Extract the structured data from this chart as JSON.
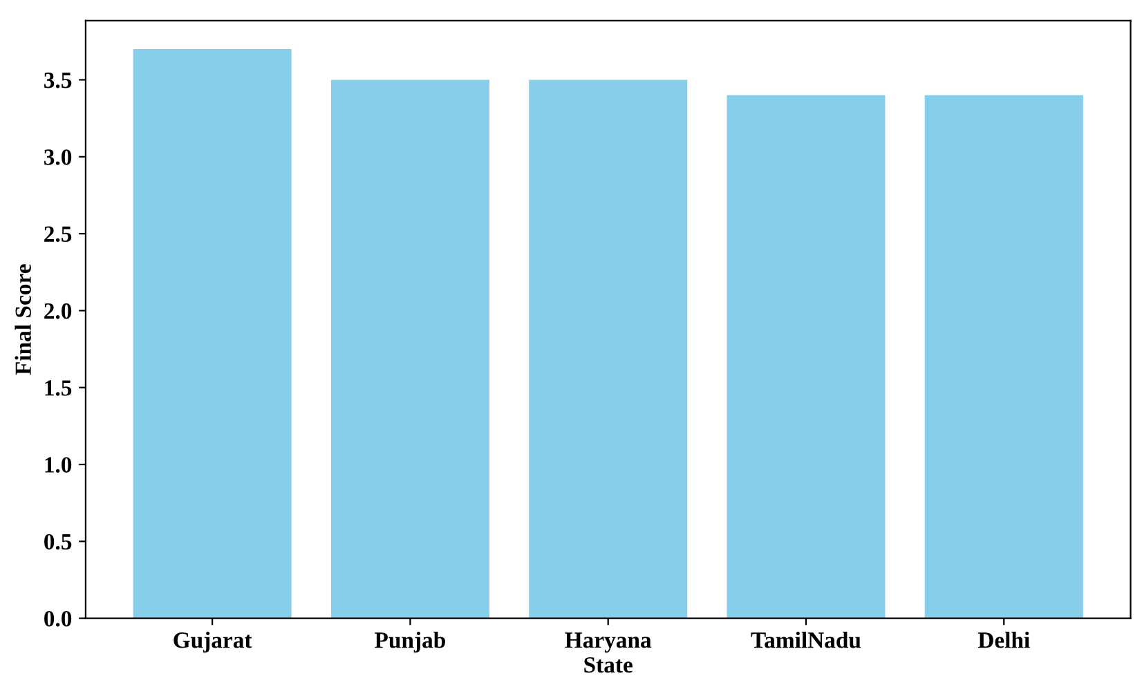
{
  "chart_data": {
    "type": "bar",
    "xlabel": "State",
    "ylabel": "Final Score",
    "categories": [
      "Gujarat",
      "Punjab",
      "Haryana",
      "TamilNadu",
      "Delhi"
    ],
    "values": [
      3.7,
      3.5,
      3.5,
      3.4,
      3.4
    ],
    "color": "#87ceeb",
    "ylim": [
      0,
      3.885
    ],
    "yticks": [
      {
        "value": 0,
        "label": "0.0"
      },
      0.5,
      {
        "value": 1,
        "label": "1.0"
      },
      1.5,
      {
        "value": 2,
        "label": "2.0"
      },
      2.5,
      {
        "value": 3,
        "label": "3.0"
      },
      3.5
    ],
    "grid": false
  }
}
